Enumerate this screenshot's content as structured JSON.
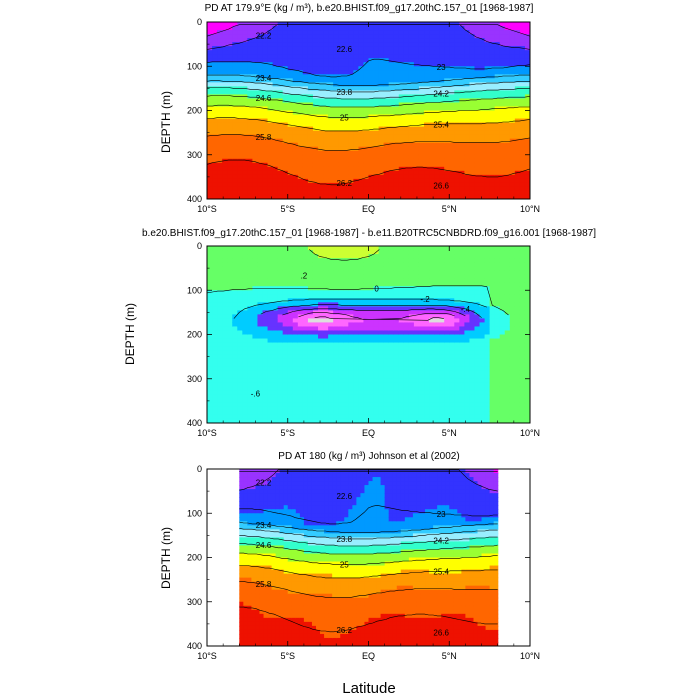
{
  "chart_data": [
    {
      "type": "heatmap",
      "title": "PD AT 179.9°E (kg / m³), b.e20.BHIST.f09_g17.20thC.157_01 [1968-1987]",
      "ylabel": "DEPTH (m)",
      "xlabel": "",
      "x_ticks": [
        "10°S",
        "5°S",
        "EQ",
        "5°N",
        "10°N"
      ],
      "x_range": [
        -10,
        10
      ],
      "y_ticks": [
        "0",
        "100",
        "200",
        "300",
        "400"
      ],
      "y_range": [
        0,
        400
      ],
      "y_inverted": true,
      "x_data_extent": [
        -10,
        10
      ],
      "contour_labels": [
        "22.2",
        "22.6",
        "23",
        "23.4",
        "23.8",
        "24.2",
        "24.6",
        "25",
        "25.4",
        "25.8",
        "26.2",
        "26.6"
      ],
      "levels": [
        22.2,
        22.6,
        23,
        23.4,
        23.8,
        24.2,
        24.6,
        25,
        25.4,
        25.8,
        26.2,
        26.6
      ],
      "palette": [
        "#ff00ff",
        "#cc33ff",
        "#9933ff",
        "#3333ff",
        "#0066ff",
        "#0099ff",
        "#33ccff",
        "#66ddff",
        "#99eeff",
        "#33ffcc",
        "#33ff66",
        "#99ff33",
        "#ffff00",
        "#ffcc00",
        "#ff9900",
        "#ff6600",
        "#ff3300",
        "#ee1100",
        "#cc0000"
      ]
    },
    {
      "type": "heatmap",
      "title": "b.e20.BHIST.f09_g17.20thC.157_01 [1968-1987] - b.e11.B20TRC5CNBDRD.f09_g16.001 [1968-1987]",
      "ylabel": "DEPTH (m)",
      "xlabel": "",
      "x_ticks": [
        "10°S",
        "5°S",
        "EQ",
        "5°N",
        "10°N"
      ],
      "x_range": [
        -10,
        10
      ],
      "y_ticks": [
        "0",
        "100",
        "200",
        "300",
        "400"
      ],
      "y_range": [
        0,
        400
      ],
      "y_inverted": true,
      "x_data_extent": [
        -10,
        10
      ],
      "contour_labels": [
        ".2",
        "0",
        "-.2",
        "-.4",
        "-.6"
      ],
      "levels": [
        -1.0,
        -0.8,
        -0.6,
        -0.4,
        -0.2,
        0,
        0.2,
        0.4
      ],
      "palette": [
        "#dddddd",
        "#ff66ff",
        "#cc33ff",
        "#6633ff",
        "#3333ff",
        "#00ccff",
        "#33ffee",
        "#66ff66",
        "#ccff33",
        "#ffdd33"
      ]
    },
    {
      "type": "heatmap",
      "title": "PD AT 180 (kg / m³) Johnson et al (2002)",
      "ylabel": "DEPTH (m)",
      "xlabel": "Latitude",
      "x_ticks": [
        "10°S",
        "5°S",
        "EQ",
        "5°N",
        "10°N"
      ],
      "x_range": [
        -10,
        10
      ],
      "y_ticks": [
        "0",
        "100",
        "200",
        "300",
        "400"
      ],
      "y_range": [
        0,
        400
      ],
      "y_inverted": true,
      "x_data_extent": [
        -8,
        8
      ],
      "contour_labels": [
        "22.2",
        "22.6",
        "23",
        "23.4",
        "23.8",
        "24.2",
        "24.6",
        "25",
        "25.4",
        "25.8",
        "26.2",
        "26.6"
      ],
      "levels": [
        22.2,
        22.6,
        23,
        23.4,
        23.8,
        24.2,
        24.6,
        25,
        25.4,
        25.8,
        26.2,
        26.6
      ],
      "palette": [
        "#ff00ff",
        "#cc33ff",
        "#9933ff",
        "#3333ff",
        "#0066ff",
        "#0099ff",
        "#33ccff",
        "#66ddff",
        "#99eeff",
        "#33ffcc",
        "#33ff66",
        "#99ff33",
        "#ffff00",
        "#ffcc00",
        "#ff9900",
        "#ff6600",
        "#ff3300",
        "#ee1100",
        "#cc0000"
      ]
    }
  ]
}
